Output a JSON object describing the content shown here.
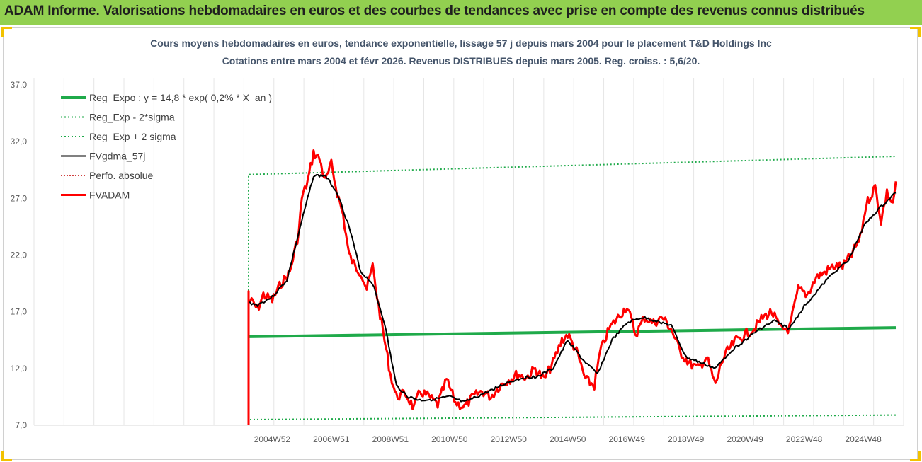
{
  "banner": {
    "title": "ADAM Informe. Valorisations hebdomadaires en euros et des courbes de tendances avec prise en compte des revenus connus distribués"
  },
  "chart_data": {
    "type": "line",
    "title_line1": "Cours moyens hebdomadaires en euros, tendance exponentielle, lissage 57 j depuis mars 2004 pour le placement T&D Holdings Inc",
    "title_line2": "Cotations entre mars 2004 et févr 2026. Revenus DISTRIBUES depuis mars 2005. Reg. croiss. : 5,6/20.",
    "ylim": [
      7.0,
      37.0
    ],
    "yticks": [
      "7,0",
      "12,0",
      "17,0",
      "22,0",
      "27,0",
      "32,0",
      "37,0"
    ],
    "xticks": [
      "2004W52",
      "2006W51",
      "2008W51",
      "2010W50",
      "2012W50",
      "2014W50",
      "2016W49",
      "2018W49",
      "2020W49",
      "2022W48",
      "2024W48"
    ],
    "x_start_year": 2004.2,
    "x_end_year": 2026.1,
    "grid": true,
    "legend_position": "top-left",
    "colors": {
      "reg_expo": "#1faa4a",
      "sigma": "#1faa4a",
      "fvgdma": "#000000",
      "perfo": "#c00000",
      "fvadam": "#ff0000"
    },
    "legend": [
      {
        "label": "Reg_Expo : y = 14,8 * exp( 0,2% *  X_an )",
        "style": "reg"
      },
      {
        "label": "Reg_Exp - 2*sigma",
        "style": "dotted-green"
      },
      {
        "label": "Reg_Exp + 2 sigma",
        "style": "dotted-green"
      },
      {
        "label": "FVgdma_57j",
        "style": "black"
      },
      {
        "label": "Perfo. absolue",
        "style": "dotted-red"
      },
      {
        "label": "FVADAM",
        "style": "red"
      }
    ],
    "series": [
      {
        "name": "Reg_Expo : y = 14,8 * exp( 0,2% *  X_an )",
        "x": [
          2004.2,
          2026.1
        ],
        "y": [
          14.8,
          15.6
        ]
      },
      {
        "name": "Reg_Exp - 2*sigma",
        "x": [
          2004.2,
          2026.1
        ],
        "y": [
          7.5,
          7.9
        ]
      },
      {
        "name": "Reg_Exp + 2 sigma",
        "x": [
          2004.2,
          2026.1
        ],
        "y": [
          29.1,
          30.7
        ]
      },
      {
        "name": "FVADAM",
        "x": [
          2004.2,
          2004.35,
          2004.5,
          2004.7,
          2005.0,
          2005.3,
          2005.6,
          2005.9,
          2006.0,
          2006.2,
          2006.4,
          2006.6,
          2006.8,
          2007.0,
          2007.2,
          2007.4,
          2007.6,
          2007.8,
          2008.0,
          2008.2,
          2008.4,
          2008.6,
          2008.8,
          2009.0,
          2009.2,
          2009.5,
          2009.8,
          2010.0,
          2010.3,
          2010.6,
          2010.9,
          2011.2,
          2011.5,
          2011.8,
          2012.1,
          2012.4,
          2012.7,
          2013.0,
          2013.3,
          2013.6,
          2013.9,
          2014.2,
          2014.5,
          2014.8,
          2015.0,
          2015.3,
          2015.6,
          2015.9,
          2016.1,
          2016.4,
          2016.7,
          2017.0,
          2017.3,
          2017.6,
          2017.9,
          2018.2,
          2018.5,
          2018.8,
          2019.1,
          2019.4,
          2019.7,
          2020.0,
          2020.2,
          2020.4,
          2020.7,
          2021.0,
          2021.3,
          2021.6,
          2021.9,
          2022.2,
          2022.5,
          2022.8,
          2023.1,
          2023.4,
          2023.7,
          2024.0,
          2024.3,
          2024.6,
          2024.9,
          2025.1,
          2025.4,
          2025.6,
          2025.8,
          2026.0,
          2026.1
        ],
        "y": [
          18.0,
          17.8,
          17.2,
          18.5,
          18.0,
          19.5,
          20.5,
          24.0,
          27.0,
          28.5,
          31.0,
          30.5,
          28.5,
          30.0,
          27.5,
          25.5,
          22.0,
          21.0,
          20.5,
          19.0,
          21.0,
          17.5,
          14.5,
          11.5,
          9.5,
          9.8,
          8.5,
          10.0,
          9.5,
          8.8,
          11.0,
          9.0,
          8.6,
          9.5,
          10.0,
          9.5,
          10.5,
          11.0,
          11.5,
          11.2,
          12.0,
          11.0,
          12.5,
          14.5,
          15.0,
          13.5,
          11.0,
          10.5,
          13.5,
          15.5,
          16.5,
          17.5,
          15.0,
          16.5,
          16.0,
          16.5,
          15.5,
          13.5,
          12.5,
          12.0,
          13.0,
          10.5,
          12.5,
          13.5,
          14.5,
          15.0,
          15.5,
          16.5,
          17.0,
          15.5,
          15.5,
          19.0,
          18.5,
          20.0,
          20.5,
          21.0,
          21.0,
          22.0,
          23.5,
          26.5,
          28.0,
          25.0,
          27.5,
          26.5,
          28.5
        ]
      },
      {
        "name": "FVgdma_57j",
        "x": [
          2004.2,
          2004.5,
          2005.0,
          2005.5,
          2006.0,
          2006.4,
          2006.8,
          2007.2,
          2007.6,
          2008.0,
          2008.4,
          2008.8,
          2009.2,
          2009.6,
          2010.0,
          2010.5,
          2011.0,
          2011.5,
          2012.0,
          2012.5,
          2013.0,
          2013.5,
          2014.0,
          2014.5,
          2015.0,
          2015.5,
          2016.0,
          2016.5,
          2017.0,
          2017.5,
          2018.0,
          2018.5,
          2019.0,
          2019.5,
          2020.0,
          2020.5,
          2021.0,
          2021.5,
          2022.0,
          2022.5,
          2023.0,
          2023.5,
          2024.0,
          2024.5,
          2025.0,
          2025.5,
          2026.1
        ],
        "y": [
          17.8,
          17.6,
          18.3,
          19.8,
          25.0,
          29.0,
          29.0,
          27.5,
          24.5,
          20.5,
          19.5,
          16.0,
          10.5,
          9.5,
          9.2,
          9.3,
          9.5,
          9.0,
          9.6,
          10.2,
          10.8,
          11.2,
          11.3,
          12.0,
          14.5,
          12.8,
          11.5,
          14.5,
          16.0,
          16.5,
          16.2,
          15.8,
          13.0,
          12.5,
          12.0,
          13.5,
          14.5,
          15.5,
          16.2,
          15.5,
          17.5,
          19.0,
          20.5,
          21.5,
          24.5,
          26.0,
          27.5
        ]
      }
    ]
  }
}
